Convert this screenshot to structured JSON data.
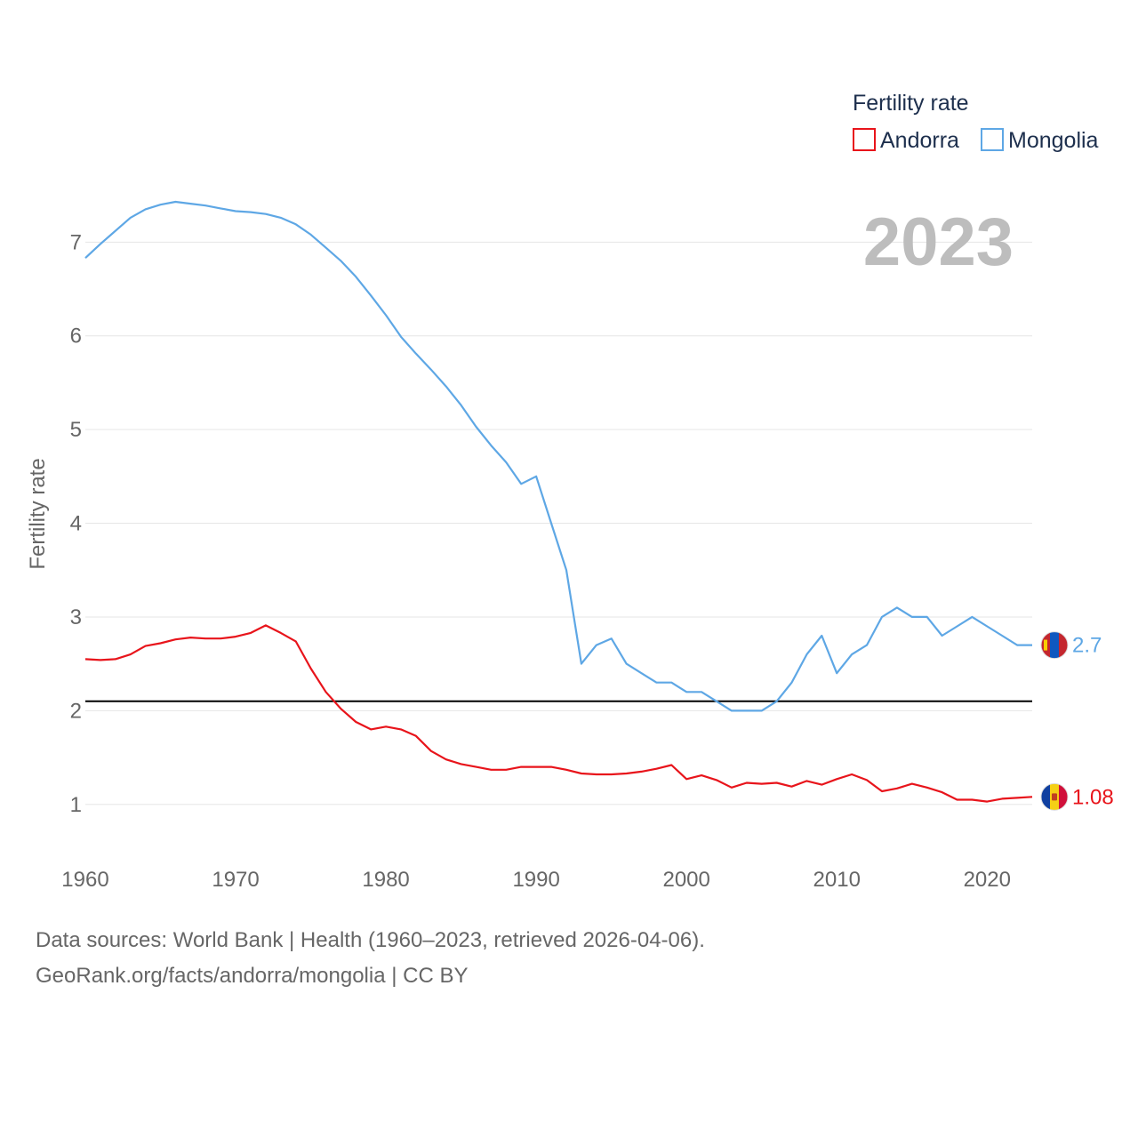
{
  "chart_data": {
    "type": "line",
    "year_label": "2023",
    "ylabel": "Fertility rate",
    "xlim": [
      1960,
      2023
    ],
    "ylim": [
      0.4,
      7.8
    ],
    "yticks": [
      1,
      2,
      3,
      4,
      5,
      6,
      7
    ],
    "xticks": [
      1960,
      1970,
      1980,
      1990,
      2000,
      2010,
      2020
    ],
    "legend": {
      "title": "Fertility rate",
      "position": "top-right"
    },
    "reference_line": {
      "value": 2.1,
      "color": "#000000"
    },
    "x": [
      1960,
      1961,
      1962,
      1963,
      1964,
      1965,
      1966,
      1967,
      1968,
      1969,
      1970,
      1971,
      1972,
      1973,
      1974,
      1975,
      1976,
      1977,
      1978,
      1979,
      1980,
      1981,
      1982,
      1983,
      1984,
      1985,
      1986,
      1987,
      1988,
      1989,
      1990,
      1991,
      1992,
      1993,
      1994,
      1995,
      1996,
      1997,
      1998,
      1999,
      2000,
      2001,
      2002,
      2003,
      2004,
      2005,
      2006,
      2007,
      2008,
      2009,
      2010,
      2011,
      2012,
      2013,
      2014,
      2015,
      2016,
      2017,
      2018,
      2019,
      2020,
      2021,
      2022,
      2023
    ],
    "series": [
      {
        "name": "Andorra",
        "color": "#e8141b",
        "end_label": "1.08",
        "values": [
          2.55,
          2.54,
          2.55,
          2.6,
          2.69,
          2.72,
          2.76,
          2.78,
          2.77,
          2.77,
          2.79,
          2.83,
          2.91,
          2.83,
          2.74,
          2.45,
          2.2,
          2.02,
          1.88,
          1.8,
          1.83,
          1.8,
          1.73,
          1.57,
          1.48,
          1.43,
          1.4,
          1.37,
          1.37,
          1.4,
          1.4,
          1.4,
          1.37,
          1.33,
          1.32,
          1.32,
          1.33,
          1.35,
          1.38,
          1.42,
          1.27,
          1.31,
          1.26,
          1.18,
          1.23,
          1.22,
          1.23,
          1.19,
          1.25,
          1.21,
          1.27,
          1.32,
          1.26,
          1.14,
          1.17,
          1.22,
          1.18,
          1.13,
          1.05,
          1.05,
          1.03,
          1.06,
          1.07,
          1.08
        ]
      },
      {
        "name": "Mongolia",
        "color": "#5ea7e5",
        "end_label": "2.7",
        "values": [
          6.83,
          6.98,
          7.12,
          7.26,
          7.35,
          7.4,
          7.43,
          7.41,
          7.39,
          7.36,
          7.33,
          7.32,
          7.3,
          7.26,
          7.19,
          7.08,
          6.94,
          6.8,
          6.63,
          6.43,
          6.22,
          5.99,
          5.81,
          5.64,
          5.46,
          5.26,
          5.03,
          4.83,
          4.65,
          4.42,
          4.5,
          4.0,
          3.5,
          2.5,
          2.7,
          2.77,
          2.5,
          2.4,
          2.3,
          2.3,
          2.2,
          2.2,
          2.1,
          2.0,
          2.0,
          2.0,
          2.1,
          2.3,
          2.6,
          2.8,
          2.4,
          2.6,
          2.7,
          3.0,
          3.1,
          3.0,
          3.0,
          2.8,
          2.9,
          3.0,
          2.9,
          2.8,
          2.7,
          2.7
        ]
      }
    ]
  },
  "footer": {
    "line1": "Data sources: World Bank | Health (1960–2023, retrieved 2026-04-06).",
    "line2": "GeoRank.org/facts/andorra/mongolia | CC BY"
  },
  "icons": {
    "andorra": "andorra-flag-icon",
    "mongolia": "mongolia-flag-icon"
  }
}
